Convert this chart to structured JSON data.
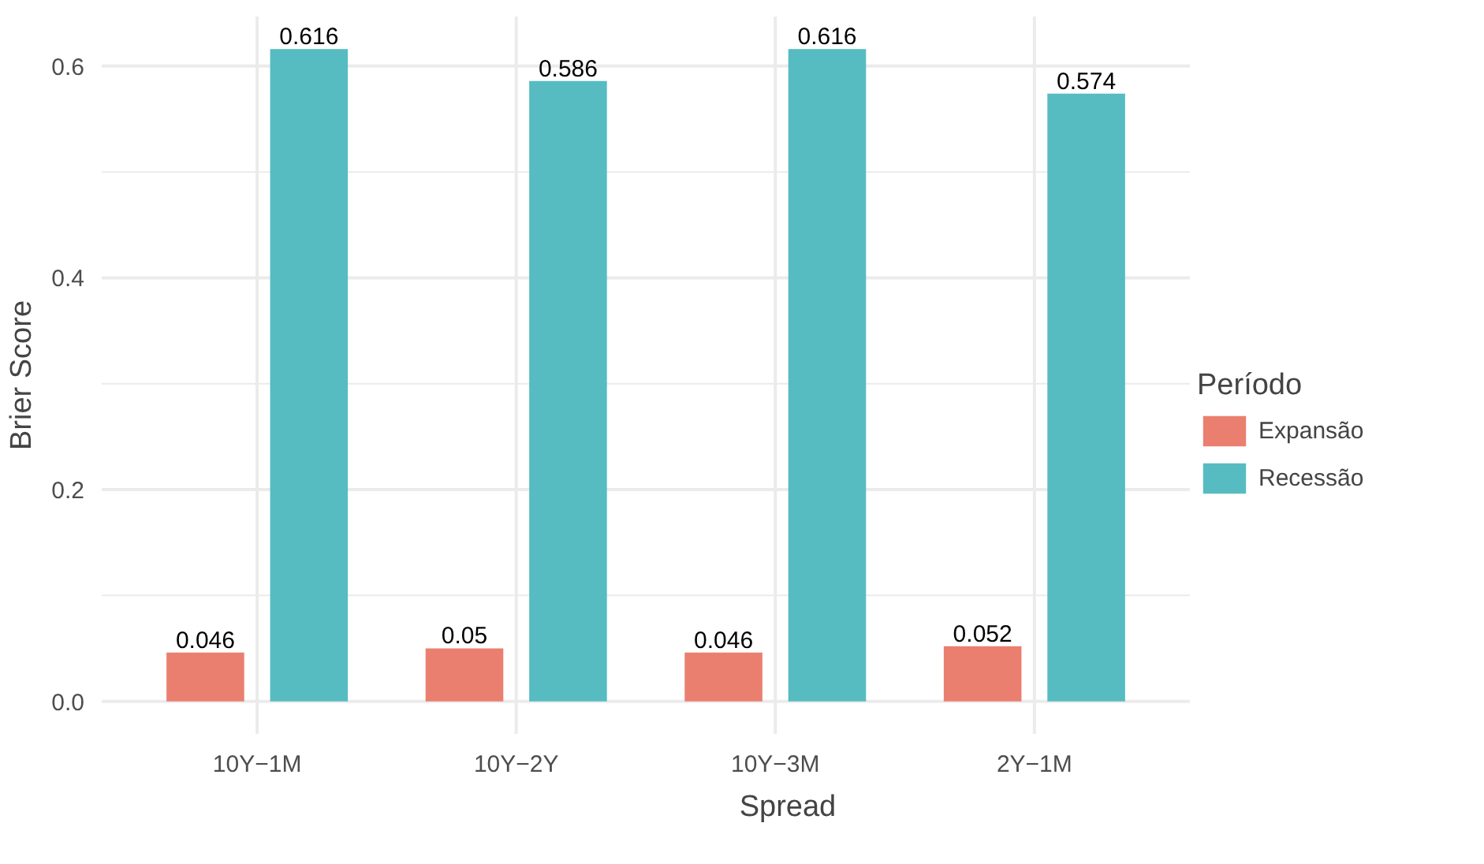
{
  "chart_data": {
    "type": "bar",
    "xlabel": "Spread",
    "ylabel": "Brier Score",
    "legend_title": "Período",
    "categories": [
      "10Y−1M",
      "10Y−2Y",
      "10Y−3M",
      "2Y−1M"
    ],
    "series": [
      {
        "name": "Expansão",
        "color": "#ea7f70",
        "values": [
          0.046,
          0.05,
          0.046,
          0.052
        ]
      },
      {
        "name": "Recessão",
        "color": "#56bcc2",
        "values": [
          0.616,
          0.586,
          0.616,
          0.574
        ]
      }
    ],
    "ylim": [
      -0.0308,
      0.6468
    ],
    "yticks": [
      {
        "value": 0,
        "label": "0.0"
      },
      {
        "value": 0.1,
        "label": null
      },
      {
        "value": 0.2,
        "label": "0.2"
      },
      {
        "value": 0.3,
        "label": null
      },
      {
        "value": 0.4,
        "label": "0.4"
      },
      {
        "value": 0.5,
        "label": null
      },
      {
        "value": 0.6,
        "label": "0.6"
      }
    ],
    "grid": true,
    "legend": "right",
    "data_labels": true
  }
}
